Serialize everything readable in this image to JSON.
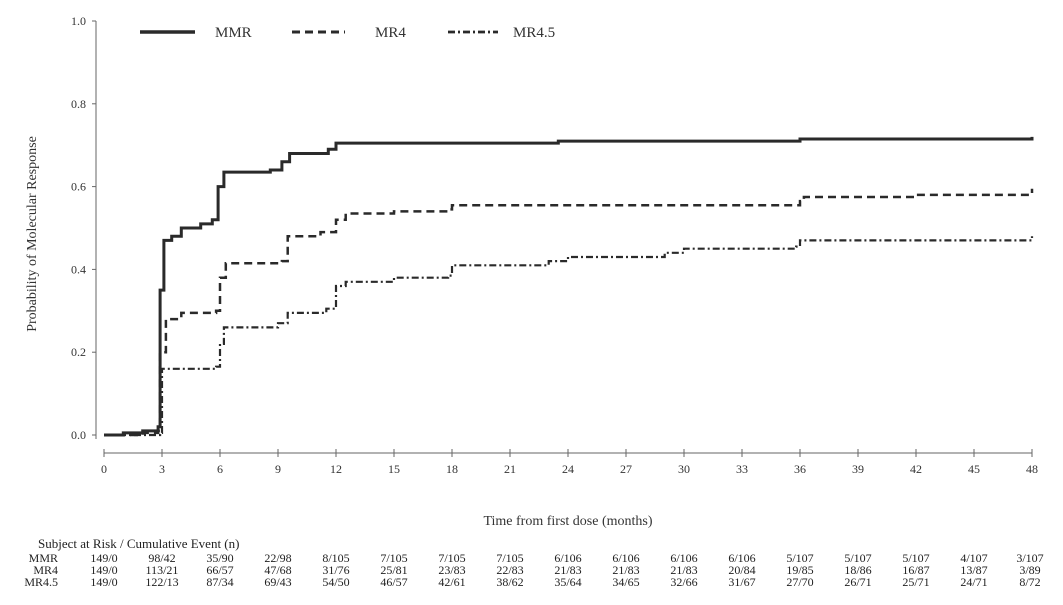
{
  "chart_data": {
    "type": "line",
    "title": "",
    "xlabel": "Time from first dose (months)",
    "ylabel": "Probability of Molecular Response",
    "xlim": [
      0,
      48
    ],
    "ylim": [
      0,
      1.0
    ],
    "x_ticks": [
      0,
      3,
      6,
      9,
      12,
      15,
      18,
      21,
      24,
      27,
      30,
      33,
      36,
      39,
      42,
      45,
      48
    ],
    "y_ticks": [
      "0.0",
      "0.2",
      "0.4",
      "0.6",
      "0.8",
      "1.0"
    ],
    "legend_position": "top-left",
    "series": [
      {
        "name": "MMR",
        "style": "solid",
        "step": true,
        "points": [
          [
            0,
            0
          ],
          [
            1,
            0.005
          ],
          [
            2,
            0.01
          ],
          [
            2.8,
            0.02
          ],
          [
            2.9,
            0.35
          ],
          [
            3.1,
            0.47
          ],
          [
            3.5,
            0.48
          ],
          [
            4,
            0.5
          ],
          [
            5,
            0.51
          ],
          [
            5.6,
            0.52
          ],
          [
            5.9,
            0.6
          ],
          [
            6.2,
            0.635
          ],
          [
            8.6,
            0.64
          ],
          [
            9.2,
            0.66
          ],
          [
            9.6,
            0.68
          ],
          [
            11.6,
            0.69
          ],
          [
            12,
            0.705
          ],
          [
            23,
            0.705
          ],
          [
            23.5,
            0.71
          ],
          [
            36,
            0.715
          ],
          [
            48,
            0.72
          ]
        ]
      },
      {
        "name": "MR4",
        "style": "dashed",
        "step": true,
        "points": [
          [
            0,
            0
          ],
          [
            2,
            0.005
          ],
          [
            2.8,
            0.01
          ],
          [
            2.9,
            0.2
          ],
          [
            3.2,
            0.28
          ],
          [
            4,
            0.295
          ],
          [
            5.8,
            0.3
          ],
          [
            6,
            0.38
          ],
          [
            6.3,
            0.415
          ],
          [
            9.2,
            0.42
          ],
          [
            9.5,
            0.48
          ],
          [
            11.2,
            0.49
          ],
          [
            12,
            0.52
          ],
          [
            12.5,
            0.535
          ],
          [
            15,
            0.54
          ],
          [
            17.8,
            0.545
          ],
          [
            18,
            0.555
          ],
          [
            36,
            0.565
          ],
          [
            36.2,
            0.575
          ],
          [
            42,
            0.58
          ],
          [
            48,
            0.595
          ]
        ]
      },
      {
        "name": "MR4.5",
        "style": "dash-dot",
        "step": true,
        "points": [
          [
            0,
            0
          ],
          [
            2.9,
            0.005
          ],
          [
            3,
            0.16
          ],
          [
            5.8,
            0.165
          ],
          [
            6,
            0.22
          ],
          [
            6.2,
            0.26
          ],
          [
            9,
            0.27
          ],
          [
            9.5,
            0.295
          ],
          [
            11.5,
            0.305
          ],
          [
            12,
            0.36
          ],
          [
            12.5,
            0.37
          ],
          [
            15,
            0.38
          ],
          [
            17.8,
            0.385
          ],
          [
            18,
            0.41
          ],
          [
            23,
            0.42
          ],
          [
            24,
            0.43
          ],
          [
            29,
            0.44
          ],
          [
            30,
            0.45
          ],
          [
            35.8,
            0.455
          ],
          [
            36,
            0.47
          ],
          [
            48,
            0.48
          ]
        ]
      }
    ],
    "risk_table": {
      "header": "Subject at Risk / Cumulative Event (n)",
      "rows": [
        {
          "label": "MMR",
          "values": [
            "149/0",
            "98/42",
            "35/90",
            "22/98",
            "8/105",
            "7/105",
            "7/105",
            "7/105",
            "6/106",
            "6/106",
            "6/106",
            "6/106",
            "5/107",
            "5/107",
            "5/107",
            "4/107",
            "3/107"
          ]
        },
        {
          "label": "MR4",
          "values": [
            "149/0",
            "113/21",
            "66/57",
            "47/68",
            "31/76",
            "25/81",
            "23/83",
            "22/83",
            "21/83",
            "21/83",
            "21/83",
            "20/84",
            "19/85",
            "18/86",
            "16/87",
            "13/87",
            "3/89"
          ]
        },
        {
          "label": "MR4.5",
          "values": [
            "149/0",
            "122/13",
            "87/34",
            "69/43",
            "54/50",
            "46/57",
            "42/61",
            "38/62",
            "35/64",
            "34/65",
            "32/66",
            "31/67",
            "27/70",
            "26/71",
            "25/71",
            "24/71",
            "8/72"
          ]
        }
      ]
    }
  }
}
